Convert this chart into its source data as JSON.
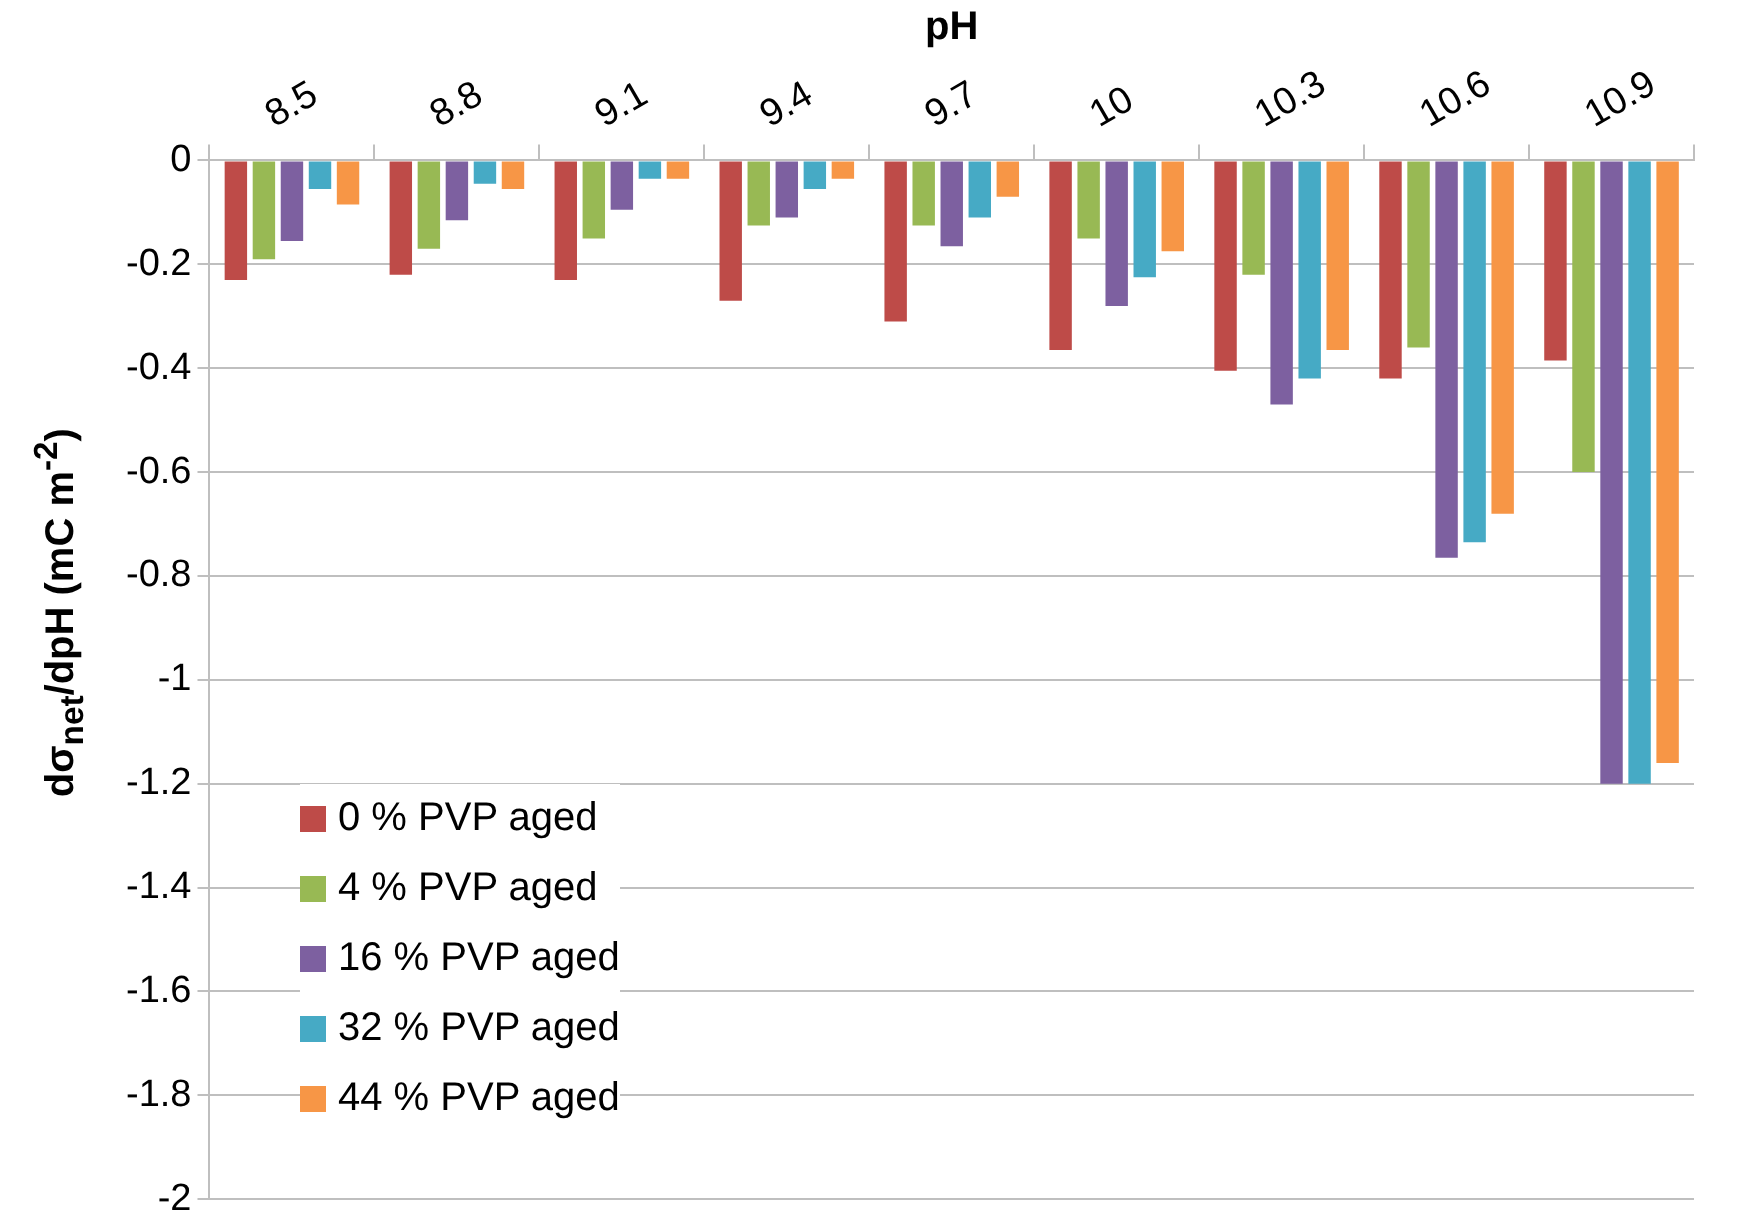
{
  "chart_data": {
    "type": "bar",
    "xlabel": "pH",
    "ylabel": "dσ$_{net}$/dpH (mC m$^{-2}$)",
    "categories": [
      "8.5",
      "8.8",
      "9.1",
      "9.4",
      "9.7",
      "10",
      "10.3",
      "10.6",
      "10.9"
    ],
    "series": [
      {
        "name": "0 % PVP aged",
        "color": "#be4b48",
        "values": [
          -0.23,
          -0.22,
          -0.23,
          -0.27,
          -0.31,
          -0.365,
          -0.405,
          -0.42,
          -0.385
        ]
      },
      {
        "name": "4 % PVP aged",
        "color": "#98b954",
        "values": [
          -0.19,
          -0.17,
          -0.15,
          -0.125,
          -0.125,
          -0.15,
          -0.22,
          -0.36,
          -0.6
        ]
      },
      {
        "name": "16 % PVP aged",
        "color": "#7d60a0",
        "values": [
          -0.155,
          -0.115,
          -0.095,
          -0.11,
          -0.165,
          -0.28,
          -0.47,
          -0.765,
          -1.2
        ]
      },
      {
        "name": "32 % PVP aged",
        "color": "#46aac5",
        "values": [
          -0.055,
          -0.045,
          -0.035,
          -0.055,
          -0.11,
          -0.225,
          -0.42,
          -0.735,
          -1.2
        ]
      },
      {
        "name": "44 % PVP aged",
        "color": "#f79646",
        "values": [
          -0.085,
          -0.055,
          -0.035,
          -0.035,
          -0.07,
          -0.175,
          -0.365,
          -0.68,
          -1.16
        ]
      }
    ],
    "ylim": [
      -2,
      0
    ],
    "yticks": [
      0,
      -0.2,
      -0.4,
      -0.6,
      -0.8,
      -1,
      -1.2,
      -1.4,
      -1.6,
      -1.8,
      -2
    ],
    "grid": "y",
    "legend": "bottom left"
  }
}
